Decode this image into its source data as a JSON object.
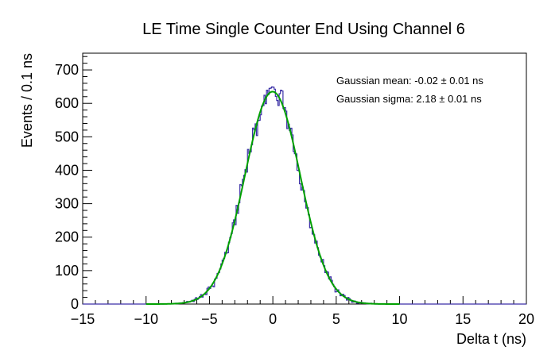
{
  "chart_data": {
    "type": "histogram",
    "title": "LE Time Single Counter End Using Channel 6",
    "xlabel": "Delta t (ns)",
    "ylabel": "Events / 0.1 ns",
    "xlim": [
      -15,
      20
    ],
    "ylim": [
      0,
      750
    ],
    "x_ticks": [
      "−15",
      "−10",
      "−5",
      "0",
      "5",
      "10",
      "15",
      "20"
    ],
    "x_tick_values": [
      -15,
      -10,
      -5,
      0,
      5,
      10,
      15,
      20
    ],
    "y_ticks": [
      "0",
      "100",
      "200",
      "300",
      "400",
      "500",
      "600",
      "700"
    ],
    "y_tick_values": [
      0,
      100,
      200,
      300,
      400,
      500,
      600,
      700
    ],
    "bin_width": 0.1,
    "grid": false,
    "fit": {
      "function": "gaussian",
      "amplitude": 635,
      "mean": -0.02,
      "sigma": 2.18,
      "color": "#00a000"
    },
    "histogram_color": "#3a2fa6",
    "annotations": [
      "Gaussian mean: -0.02 ± 0.01 ns",
      "Gaussian sigma: 2.18 ± 0.01 ns"
    ]
  }
}
